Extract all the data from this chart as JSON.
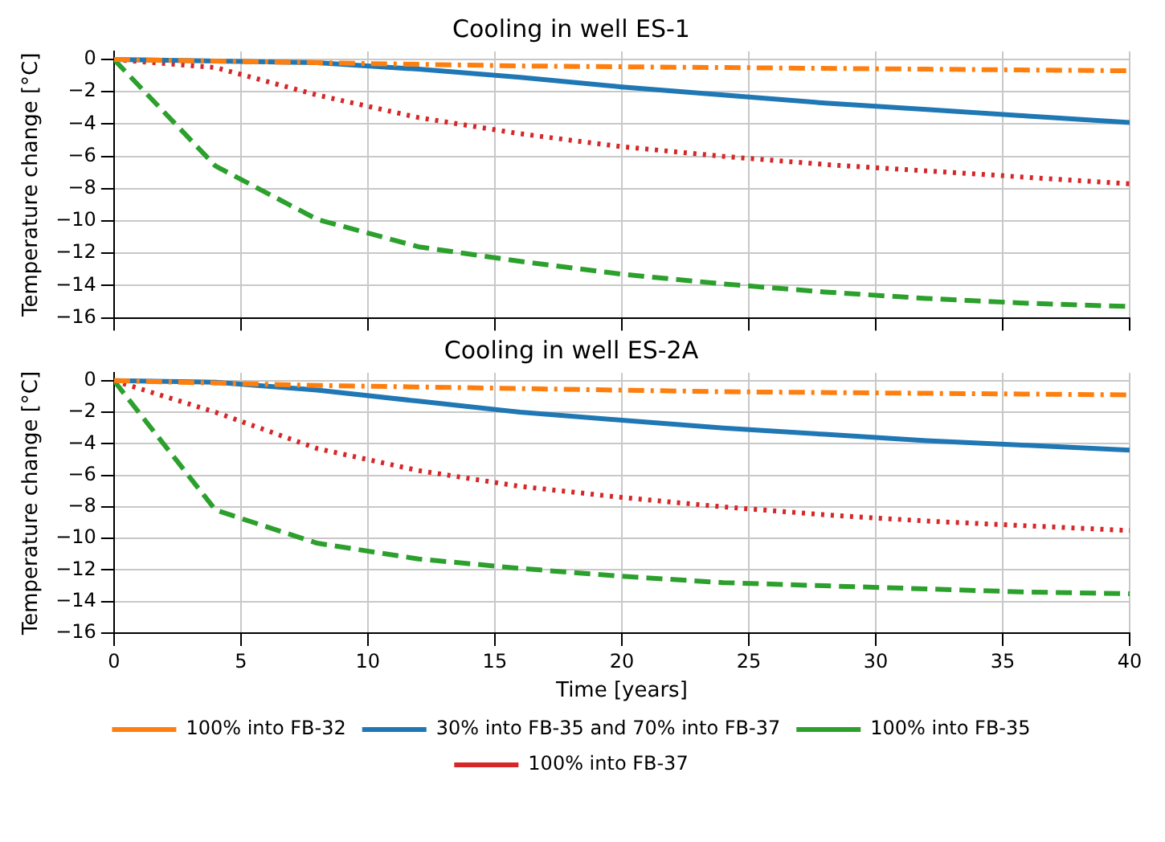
{
  "chart_data": [
    {
      "type": "line",
      "title": "Cooling in well ES-1",
      "ylabel": "Temperature change [°C]",
      "x": [
        0,
        4,
        8,
        12,
        16,
        20,
        24,
        28,
        32,
        36,
        40
      ],
      "xlim": [
        0,
        40
      ],
      "xticks": [
        0,
        5,
        10,
        15,
        20,
        25,
        30,
        35,
        40
      ],
      "ylim": [
        -16,
        0.5
      ],
      "yticks": [
        -16,
        -14,
        -12,
        -10,
        -8,
        -6,
        -4,
        -2,
        0
      ],
      "grid": true,
      "tick_labels": "y",
      "legend": false,
      "series": [
        {
          "color": "#ff7f0e",
          "line_style": "dashdot",
          "x": [
            0,
            8,
            16,
            24,
            32,
            40
          ],
          "values": [
            0,
            -0.2,
            -0.4,
            -0.5,
            -0.6,
            -0.7
          ]
        },
        {
          "color": "#1f77b4",
          "line_style": "solid",
          "values": [
            0,
            -0.1,
            -0.2,
            -0.6,
            -1.1,
            -1.7,
            -2.2,
            -2.7,
            -3.1,
            -3.5,
            -3.9
          ]
        },
        {
          "color": "#2ca02c",
          "line_style": "dashed",
          "values": [
            0,
            -6.6,
            -9.9,
            -11.6,
            -12.5,
            -13.3,
            -13.9,
            -14.4,
            -14.8,
            -15.1,
            -15.3
          ]
        },
        {
          "color": "#d62728",
          "line_style": "dotted",
          "values": [
            0,
            -0.5,
            -2.2,
            -3.6,
            -4.6,
            -5.4,
            -6.0,
            -6.5,
            -6.9,
            -7.3,
            -7.7
          ]
        }
      ]
    },
    {
      "type": "line",
      "title": "Cooling in well ES-2A",
      "xlabel": "Time [years]",
      "ylabel": "Temperature change [°C]",
      "x": [
        0,
        4,
        8,
        12,
        16,
        20,
        24,
        28,
        32,
        36,
        40
      ],
      "xlim": [
        0,
        40
      ],
      "xticks": [
        0,
        5,
        10,
        15,
        20,
        25,
        30,
        35,
        40
      ],
      "ylim": [
        -16,
        0.5
      ],
      "yticks": [
        -16,
        -14,
        -12,
        -10,
        -8,
        -6,
        -4,
        -2,
        0
      ],
      "grid": true,
      "legend": "bottom",
      "series": [
        {
          "name": "100% into FB-32",
          "color": "#ff7f0e",
          "line_style": "dashdot",
          "x": [
            0,
            8,
            16,
            24,
            32,
            40
          ],
          "values": [
            0,
            -0.3,
            -0.5,
            -0.7,
            -0.8,
            -0.9
          ]
        },
        {
          "name": "30% into FB-35 and 70% into FB-37",
          "color": "#1f77b4",
          "line_style": "solid",
          "values": [
            0,
            -0.1,
            -0.6,
            -1.3,
            -2.0,
            -2.5,
            -3.0,
            -3.4,
            -3.8,
            -4.1,
            -4.4
          ]
        },
        {
          "name": "100% into FB-35",
          "color": "#2ca02c",
          "line_style": "dashed",
          "values": [
            0,
            -8.2,
            -10.3,
            -11.3,
            -11.9,
            -12.4,
            -12.8,
            -13.0,
            -13.2,
            -13.4,
            -13.5
          ]
        },
        {
          "name": "100% into FB-37",
          "color": "#d62728",
          "line_style": "dotted",
          "values": [
            0,
            -2.0,
            -4.3,
            -5.7,
            -6.7,
            -7.4,
            -8.0,
            -8.5,
            -8.9,
            -9.2,
            -9.5
          ]
        }
      ]
    }
  ]
}
